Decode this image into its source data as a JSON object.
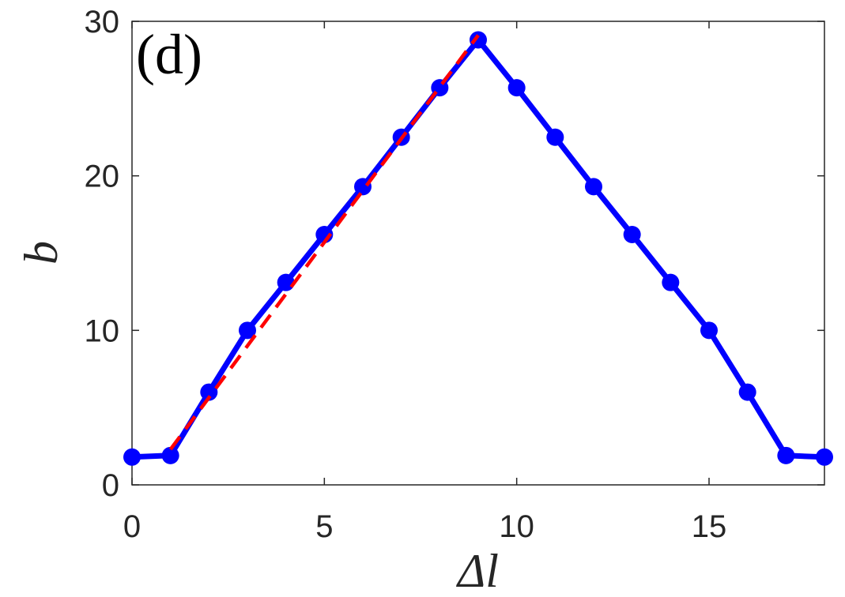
{
  "chart_data": {
    "type": "line",
    "annotation": "(d)",
    "xlabel": "Δl",
    "ylabel": "b",
    "xlim": [
      0,
      18
    ],
    "ylim": [
      0,
      30
    ],
    "xticks": [
      "0",
      "5",
      "10",
      "15"
    ],
    "xtick_values": [
      0,
      5,
      10,
      15
    ],
    "yticks": [
      "0",
      "10",
      "20",
      "30"
    ],
    "ytick_values": [
      0,
      10,
      20,
      30
    ],
    "grid": false,
    "series": [
      {
        "style": "solid-markers",
        "color": "#0000ff",
        "x": [
          0,
          1,
          2,
          3,
          4,
          5,
          6,
          7,
          8,
          9,
          10,
          11,
          12,
          13,
          14,
          15,
          16,
          17,
          18
        ],
        "y": [
          1.8,
          1.9,
          6.0,
          10.0,
          13.1,
          16.2,
          19.3,
          22.5,
          25.7,
          28.8,
          25.7,
          22.5,
          19.3,
          16.2,
          13.1,
          10.0,
          6.0,
          1.9,
          1.8
        ]
      },
      {
        "style": "dashed",
        "color": "#ff0000",
        "x": [
          1,
          9
        ],
        "y": [
          2.3,
          29.1
        ]
      }
    ]
  }
}
